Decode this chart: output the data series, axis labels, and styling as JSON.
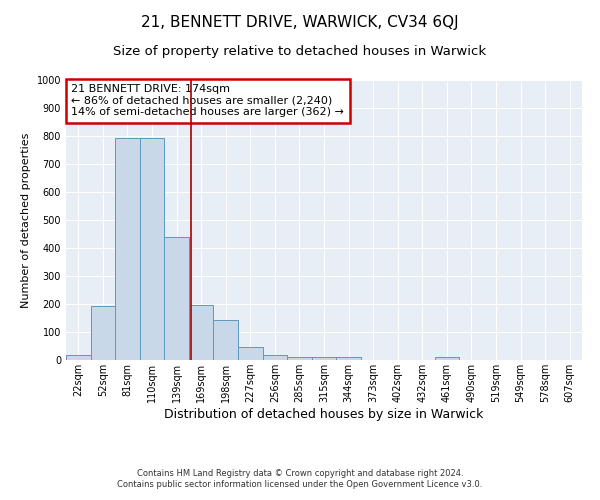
{
  "title1": "21, BENNETT DRIVE, WARWICK, CV34 6QJ",
  "title2": "Size of property relative to detached houses in Warwick",
  "xlabel": "Distribution of detached houses by size in Warwick",
  "ylabel": "Number of detached properties",
  "categories": [
    "22sqm",
    "52sqm",
    "81sqm",
    "110sqm",
    "139sqm",
    "169sqm",
    "198sqm",
    "227sqm",
    "256sqm",
    "285sqm",
    "315sqm",
    "344sqm",
    "373sqm",
    "402sqm",
    "432sqm",
    "461sqm",
    "490sqm",
    "519sqm",
    "549sqm",
    "578sqm",
    "607sqm"
  ],
  "values": [
    18,
    193,
    793,
    793,
    440,
    197,
    143,
    48,
    18,
    11,
    11,
    11,
    0,
    0,
    0,
    11,
    0,
    0,
    0,
    0,
    0
  ],
  "bar_color": "#c8d8e8",
  "bar_edge_color": "#5a9abf",
  "vline_x": 4.6,
  "vline_color": "#aa0000",
  "ylim": [
    0,
    1000
  ],
  "yticks": [
    0,
    100,
    200,
    300,
    400,
    500,
    600,
    700,
    800,
    900,
    1000
  ],
  "annotation_box_text": "21 BENNETT DRIVE: 174sqm\n← 86% of detached houses are smaller (2,240)\n14% of semi-detached houses are larger (362) →",
  "annotation_box_color": "#cc0000",
  "bg_color": "#e8eef6",
  "footer1": "Contains HM Land Registry data © Crown copyright and database right 2024.",
  "footer2": "Contains public sector information licensed under the Open Government Licence v3.0.",
  "title1_fontsize": 11,
  "title2_fontsize": 9.5,
  "xlabel_fontsize": 9,
  "ylabel_fontsize": 8,
  "tick_fontsize": 7,
  "annotation_fontsize": 8,
  "footer_fontsize": 6
}
